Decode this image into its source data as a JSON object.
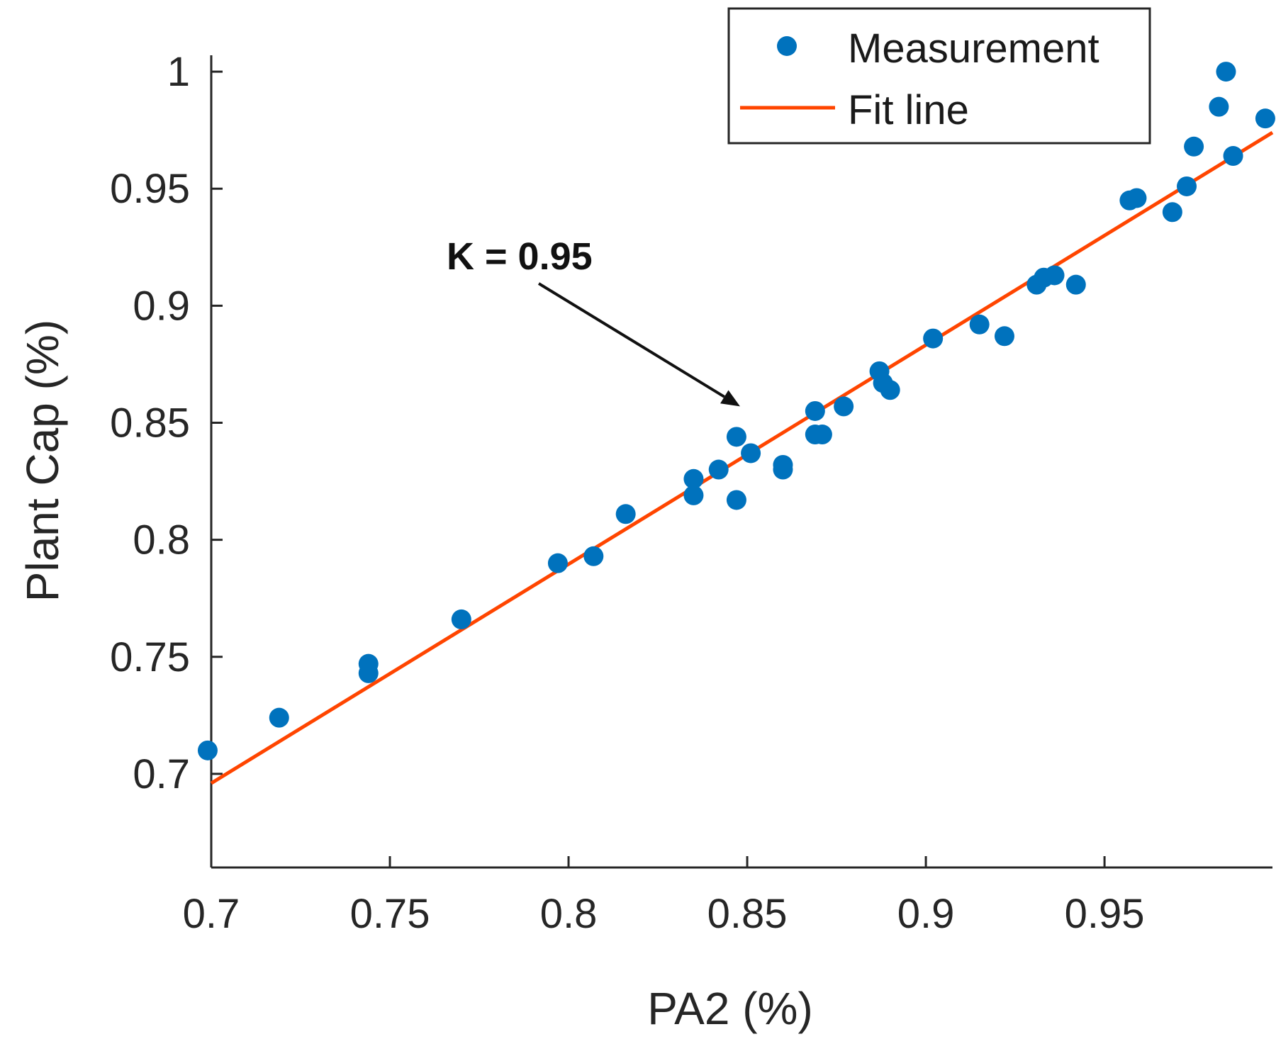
{
  "chart_data": {
    "type": "scatter",
    "title": "",
    "xlabel": "PA2 (%)",
    "ylabel": "Plant Cap (%)",
    "xlim": [
      0.7,
      0.997
    ],
    "ylim": [
      0.66,
      1.007
    ],
    "xticks": [
      0.7,
      0.75,
      0.8,
      0.85,
      0.9,
      0.95
    ],
    "xtick_labels": [
      "0.7",
      "0.75",
      "0.8",
      "0.85",
      "0.9",
      "0.95"
    ],
    "yticks": [
      0.7,
      0.75,
      0.8,
      0.85,
      0.9,
      0.95,
      1.0
    ],
    "ytick_labels": [
      "0.7",
      "0.75",
      "0.8",
      "0.85",
      "0.9",
      "0.95",
      "1"
    ],
    "grid": false,
    "legend_position": "top-right",
    "colors": {
      "measurement": "#0072BD",
      "fit_line": "#FF4500",
      "axis": "#262626"
    },
    "series": [
      {
        "name": "Measurement",
        "kind": "scatter",
        "points": [
          [
            0.699,
            0.71
          ],
          [
            0.719,
            0.724
          ],
          [
            0.744,
            0.747
          ],
          [
            0.744,
            0.743
          ],
          [
            0.77,
            0.766
          ],
          [
            0.797,
            0.79
          ],
          [
            0.807,
            0.793
          ],
          [
            0.816,
            0.811
          ],
          [
            0.835,
            0.826
          ],
          [
            0.835,
            0.819
          ],
          [
            0.842,
            0.83
          ],
          [
            0.847,
            0.844
          ],
          [
            0.847,
            0.817
          ],
          [
            0.851,
            0.837
          ],
          [
            0.86,
            0.832
          ],
          [
            0.86,
            0.83
          ],
          [
            0.869,
            0.855
          ],
          [
            0.869,
            0.845
          ],
          [
            0.871,
            0.845
          ],
          [
            0.877,
            0.857
          ],
          [
            0.887,
            0.872
          ],
          [
            0.888,
            0.867
          ],
          [
            0.89,
            0.864
          ],
          [
            0.902,
            0.886
          ],
          [
            0.915,
            0.892
          ],
          [
            0.922,
            0.887
          ],
          [
            0.931,
            0.909
          ],
          [
            0.933,
            0.912
          ],
          [
            0.936,
            0.913
          ],
          [
            0.942,
            0.909
          ],
          [
            0.957,
            0.945
          ],
          [
            0.959,
            0.946
          ],
          [
            0.969,
            0.94
          ],
          [
            0.973,
            0.951
          ],
          [
            0.975,
            0.968
          ],
          [
            0.982,
            0.985
          ],
          [
            0.984,
            1.0
          ],
          [
            0.986,
            0.964
          ],
          [
            0.995,
            0.98
          ]
        ]
      },
      {
        "name": "Fit line",
        "kind": "line",
        "points": [
          [
            0.7,
            0.696
          ],
          [
            0.997,
            0.974
          ]
        ]
      }
    ],
    "annotations": [
      {
        "text": "K = 0.95",
        "arrow_to": [
          0.848,
          0.857
        ]
      }
    ]
  }
}
